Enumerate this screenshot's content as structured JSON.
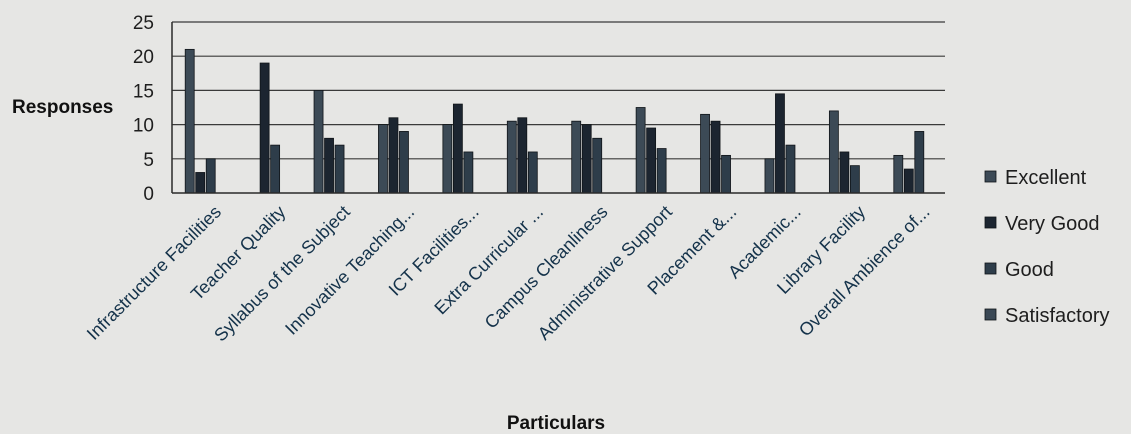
{
  "chart_data": {
    "type": "bar",
    "title": "",
    "xlabel": "Particulars",
    "ylabel": "Responses",
    "ylim": [
      0,
      25
    ],
    "yticks": [
      0,
      5,
      10,
      15,
      20,
      25
    ],
    "grid": true,
    "legend_position": "right",
    "categories": [
      "Infrastructure Facilities",
      "Teacher Quality",
      "Syllabus of the Subject",
      "Innovative Teaching...",
      "ICT Facilities...",
      "Extra Curricular ...",
      "Campus Cleanliness",
      "Administrative Support",
      "Placement &...",
      "Academic...",
      "Library Facility",
      "Overall Ambience of..."
    ],
    "series": [
      {
        "name": "Excellent",
        "color": "#3c4a56",
        "values": [
          21,
          0,
          15,
          10,
          10,
          10.5,
          10.5,
          12.5,
          11.5,
          5,
          12,
          5.5
        ]
      },
      {
        "name": "Very Good",
        "color": "#1c2530",
        "values": [
          3,
          19,
          8,
          11,
          13,
          11,
          10,
          9.5,
          10.5,
          14.5,
          6,
          3.5
        ]
      },
      {
        "name": "Good",
        "color": "#2e3d4a",
        "values": [
          5,
          7,
          7,
          9,
          6,
          6,
          8,
          6.5,
          5.5,
          7,
          4,
          9
        ]
      },
      {
        "name": "Satisfactory",
        "color": "#3a4855",
        "values": [
          0,
          0,
          0,
          0,
          0,
          0,
          0,
          0,
          0,
          0,
          0,
          0
        ]
      }
    ]
  }
}
